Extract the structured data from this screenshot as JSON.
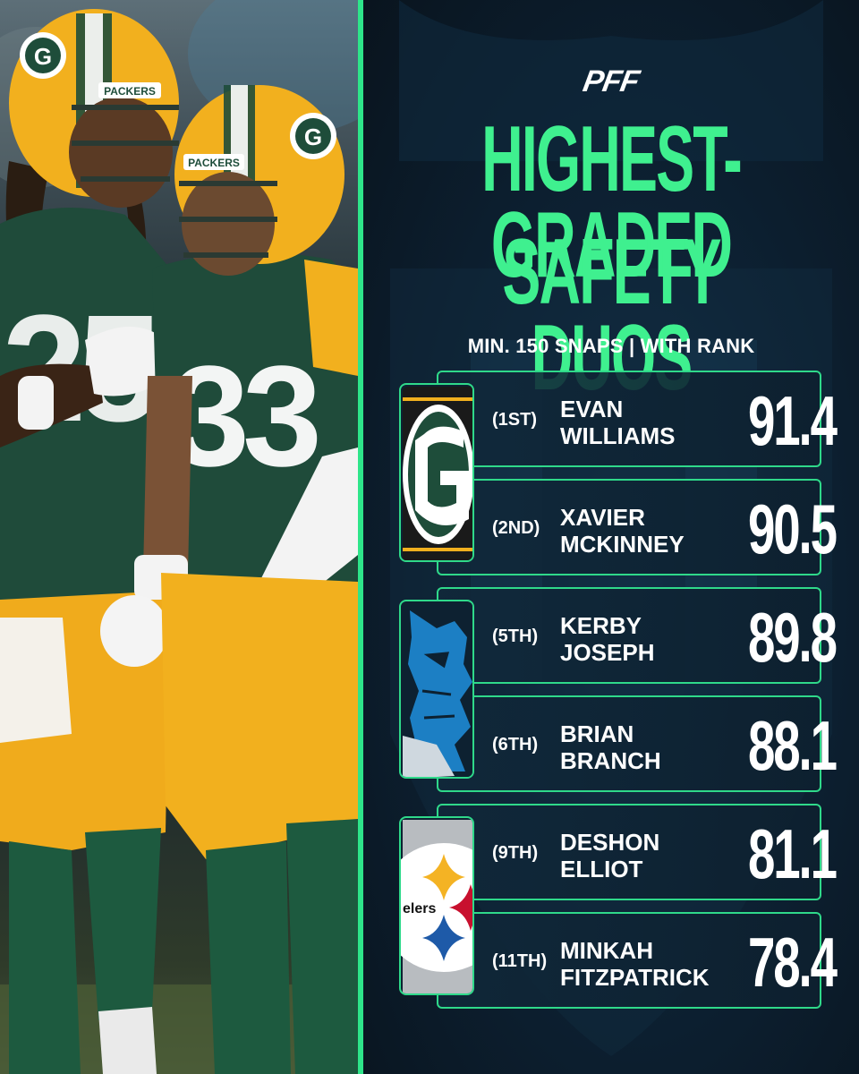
{
  "brand": {
    "logo": "PFF"
  },
  "title": {
    "line1": "HIGHEST-GRADED",
    "line2": "SAFETY DUOS"
  },
  "subtitle": "MIN. 150 SNAPS | WITH RANK",
  "colors": {
    "accent": "#3ff08f",
    "border": "#2fd98a",
    "packers_green": "#1e4d3a",
    "packers_gold": "#f2b01e",
    "lions_blue": "#1c7fc4",
    "steelers_gold": "#f4b324"
  },
  "duos": [
    {
      "team_icon": "packers-logo-icon",
      "players": [
        {
          "rank": "(1ST)",
          "first": "EVAN",
          "last": "WILLIAMS",
          "grade": "91.4"
        },
        {
          "rank": "(2ND)",
          "first": "XAVIER",
          "last": "MCKINNEY",
          "grade": "90.5"
        }
      ]
    },
    {
      "team_icon": "lions-logo-icon",
      "players": [
        {
          "rank": "(5TH)",
          "first": "KERBY",
          "last": "JOSEPH",
          "grade": "89.8"
        },
        {
          "rank": "(6TH)",
          "first": "BRIAN",
          "last": "BRANCH",
          "grade": "88.1"
        }
      ]
    },
    {
      "team_icon": "steelers-logo-icon",
      "logo_text": "elers",
      "players": [
        {
          "rank": "(9TH)",
          "first": "DESHON",
          "last": "ELLIOT",
          "grade": "81.1"
        },
        {
          "rank": "(11TH)",
          "first": "MINKAH",
          "last": "FITZPATRICK",
          "grade": "78.4"
        }
      ]
    }
  ],
  "photo": {
    "jersey_left": "25",
    "jersey_right": "33",
    "helmet_text": "PACKERS"
  }
}
